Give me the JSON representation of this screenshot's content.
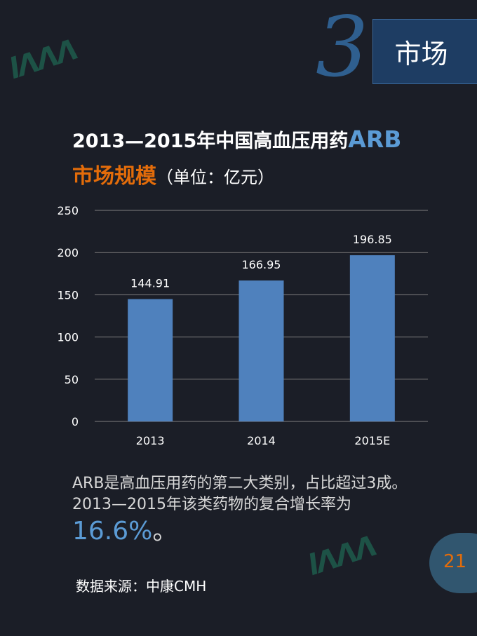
{
  "header": {
    "section_number": "3",
    "section_label": "市场"
  },
  "title": {
    "line1_main": "2013—2015年中国高血压用药",
    "line1_accent": "ARB",
    "line2_main": "市场规模",
    "line2_unit": "（单位：亿元）"
  },
  "chart_data": {
    "type": "bar",
    "categories": [
      "2013",
      "2014",
      "2015E"
    ],
    "values": [
      144.91,
      166.95,
      196.85
    ],
    "data_labels": [
      "144.91",
      "166.95",
      "196.85"
    ],
    "ylim": [
      0,
      250
    ],
    "yticks": [
      0,
      50,
      100,
      150,
      200,
      250
    ],
    "grid": true,
    "xlabel": "",
    "ylabel": "",
    "bar_color": "#4f81bd",
    "grid_color": "#7f7f7f"
  },
  "body": {
    "text": "ARB是高血压用药的第二大类别，占比超过3成。2013—2015年该类药物的复合增长率为",
    "highlight": "16.6%",
    "highlight_suffix": "。"
  },
  "footer": {
    "source": "数据来源：中康CMH",
    "page_number": "21"
  },
  "colors": {
    "background": "#1b1e27",
    "accent_blue": "#5b9bd5",
    "accent_orange": "#e36c0a",
    "watermark_green": "#1f7d60"
  }
}
